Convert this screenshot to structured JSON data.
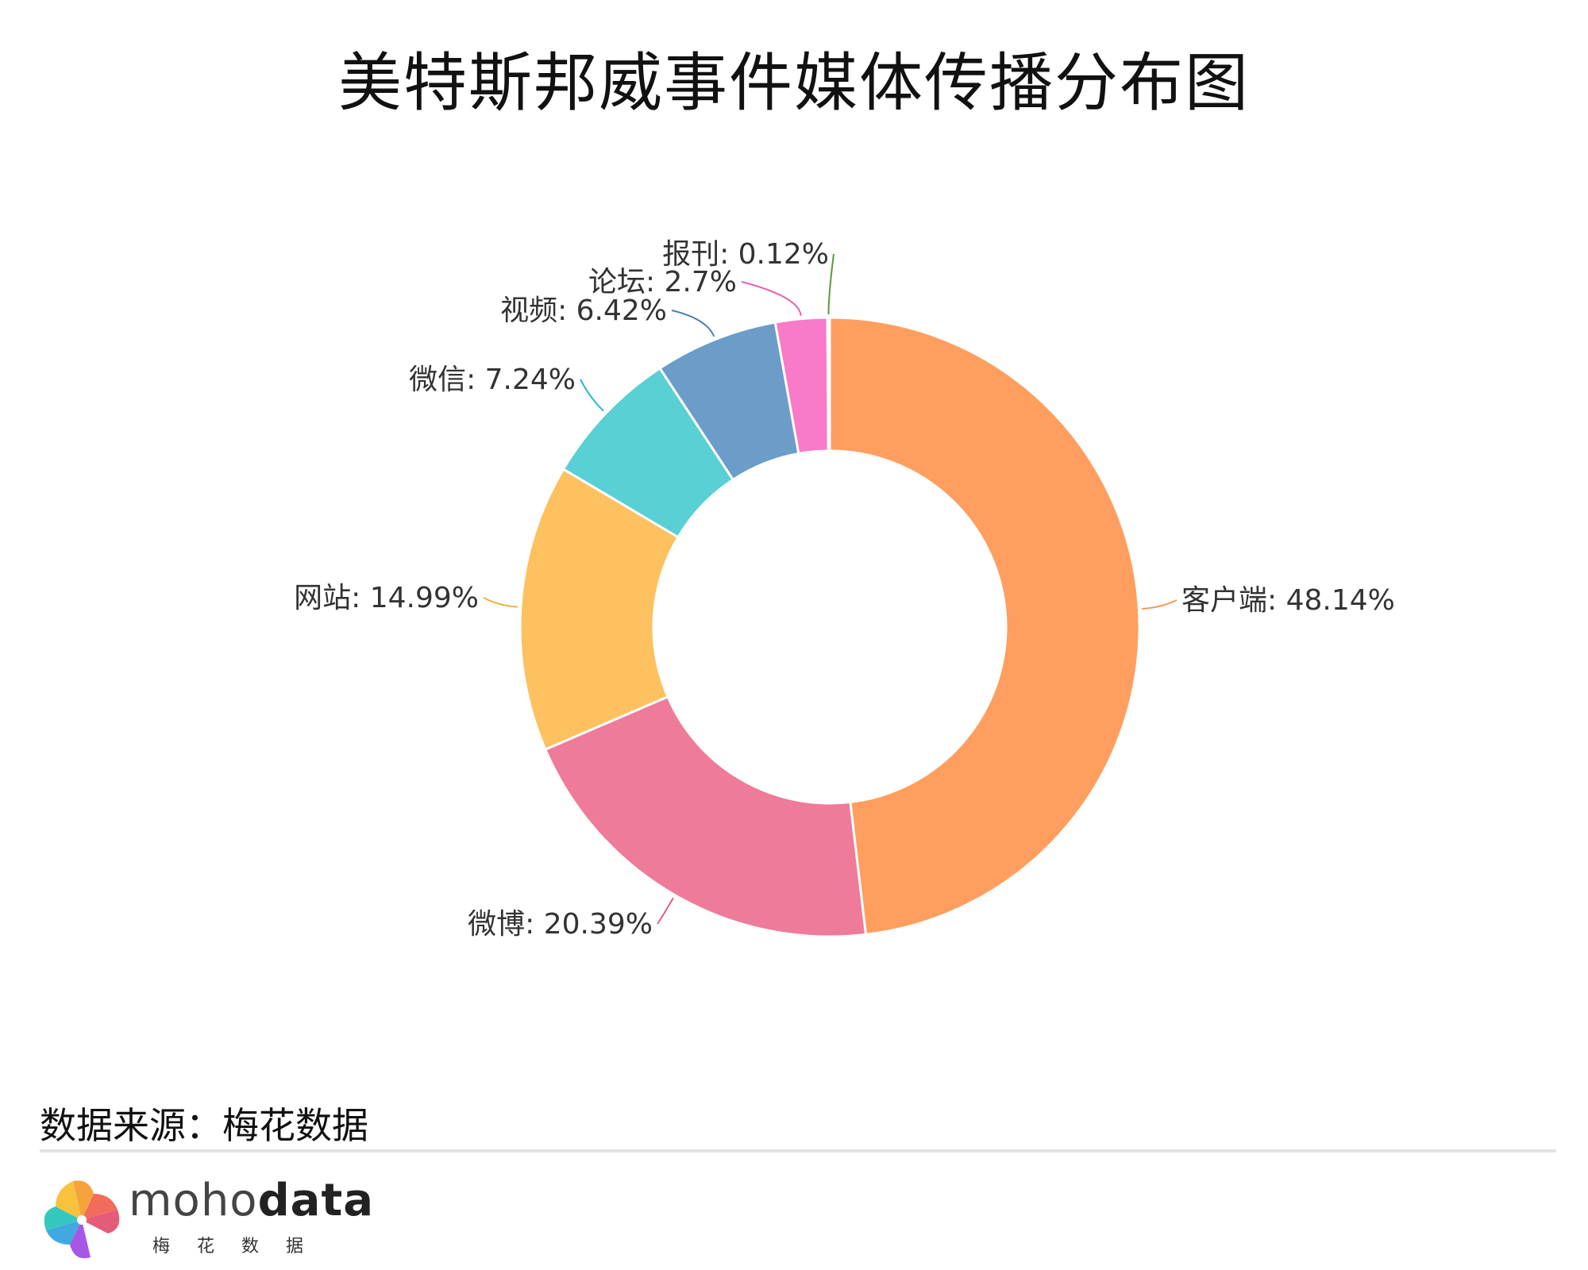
{
  "chart_data": {
    "type": "pie",
    "variant": "donut",
    "title": "美特斯邦威事件媒体传播分布图",
    "slices": [
      {
        "name": "客户端",
        "value": 48.14,
        "label": "客户端: 48.14%",
        "color": "#FF9E5E",
        "line": "#F5974F"
      },
      {
        "name": "微博",
        "value": 20.39,
        "label": "微博: 20.39%",
        "color": "#EE7B9A",
        "line": "#E06080"
      },
      {
        "name": "网站",
        "value": 14.99,
        "label": "网站: 14.99%",
        "color": "#FDC160",
        "line": "#F0B040"
      },
      {
        "name": "微信",
        "value": 7.24,
        "label": "微信: 7.24%",
        "color": "#58D0D4",
        "line": "#30B8C0"
      },
      {
        "name": "视频",
        "value": 6.42,
        "label": "视频: 6.42%",
        "color": "#6B9DC8",
        "line": "#4A80B8"
      },
      {
        "name": "论坛",
        "value": 2.7,
        "label": "论坛: 2.7%",
        "color": "#F87AC8",
        "line": "#E860B0"
      },
      {
        "name": "报刊",
        "value": 0.12,
        "label": "报刊: 0.12%",
        "color": "#6BA550",
        "line": "#5A9A40"
      }
    ],
    "legend": "none"
  },
  "source": "数据来源：梅花数据",
  "brand": {
    "name_light": "moho",
    "name_bold": "data",
    "subtitle": "梅花数据"
  }
}
